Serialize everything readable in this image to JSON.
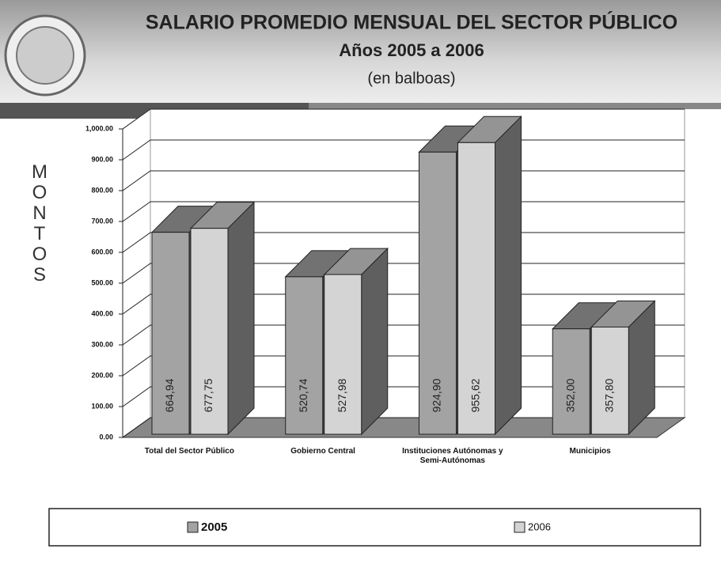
{
  "chart_data": {
    "type": "bar3d",
    "title": "SALARIO PROMEDIO MENSUAL DEL SECTOR PÚBLICO",
    "subtitle": "Años 2005 a 2006",
    "units": "(en balboas)",
    "y_label": "MONTOS",
    "categories": [
      "Total del Sector Público",
      "Gobierno Central",
      "Instituciones Autónomas y Semi-Autónomas",
      "Municipios"
    ],
    "series": [
      {
        "name": "2005",
        "color": "#a3a3a3",
        "values": [
          664.94,
          520.74,
          924.9,
          352.0
        ],
        "value_labels": [
          "664,94",
          "520,74",
          "924,90",
          "352,00"
        ]
      },
      {
        "name": "2006",
        "color": "#d4d4d4",
        "values": [
          677.75,
          527.98,
          955.62,
          357.8
        ],
        "value_labels": [
          "677,75",
          "527,98",
          "955,62",
          "357,80"
        ]
      }
    ],
    "ylim": [
      0,
      1000
    ],
    "yticks": [
      {
        "value": 0,
        "label": "0.00"
      },
      {
        "value": 100,
        "label": "100.00"
      },
      {
        "value": 200,
        "label": "200.00"
      },
      {
        "value": 300,
        "label": "300.00"
      },
      {
        "value": 400,
        "label": "400.00"
      },
      {
        "value": 500,
        "label": "500.00"
      },
      {
        "value": 600,
        "label": "600.00"
      },
      {
        "value": 700,
        "label": "700.00"
      },
      {
        "value": 800,
        "label": "800.00"
      },
      {
        "value": 900,
        "label": "900.00"
      },
      {
        "value": 1000,
        "label": "1,000.00"
      }
    ],
    "grid": true
  }
}
